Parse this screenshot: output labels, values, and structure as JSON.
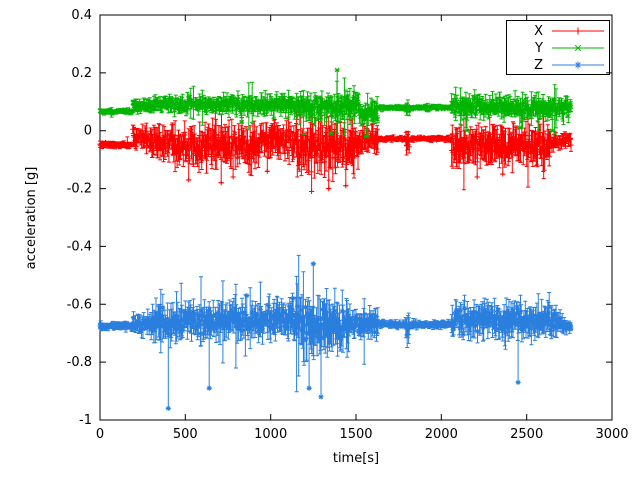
{
  "figure": {
    "background": "#ffffff",
    "border_color": "#000000",
    "text_color": "#000000"
  },
  "chart_data": {
    "type": "line",
    "title": "",
    "xlabel": "time[s]",
    "ylabel": "acceleration [g]",
    "xlim": [
      0,
      3000
    ],
    "ylim": [
      -1,
      0.4
    ],
    "x_ticks": [
      0,
      500,
      1000,
      1500,
      2000,
      2500,
      3000
    ],
    "y_ticks": [
      -1,
      -0.8,
      -0.6,
      -0.4,
      -0.2,
      0,
      0.2,
      0.4
    ],
    "grid": false,
    "legend": {
      "position": "top-right",
      "box": true,
      "entries": [
        "X",
        "Y",
        "Z"
      ]
    },
    "t_start": 0,
    "t_end": 2760,
    "sample_step": 4,
    "style": "errorbars-with-points",
    "series": [
      {
        "name": "X",
        "color": "#ff0000",
        "marker": "plus",
        "baseline": -0.04,
        "segments": [
          {
            "t0": 0,
            "t1": 190,
            "mean": -0.048,
            "spread": 0.01
          },
          {
            "t0": 190,
            "t1": 290,
            "mean": -0.025,
            "spread": 0.035
          },
          {
            "t0": 290,
            "t1": 450,
            "mean": -0.04,
            "spread": 0.05
          },
          {
            "t0": 450,
            "t1": 950,
            "mean": -0.05,
            "spread": 0.06
          },
          {
            "t0": 950,
            "t1": 1150,
            "mean": -0.035,
            "spread": 0.05
          },
          {
            "t0": 1150,
            "t1": 1520,
            "mean": -0.06,
            "spread": 0.075
          },
          {
            "t0": 1520,
            "t1": 1630,
            "mean": -0.03,
            "spread": 0.04
          },
          {
            "t0": 1630,
            "t1": 1790,
            "mean": -0.028,
            "spread": 0.008
          },
          {
            "t0": 1790,
            "t1": 1815,
            "mean": -0.04,
            "spread": 0.03
          },
          {
            "t0": 1815,
            "t1": 2060,
            "mean": -0.028,
            "spread": 0.008
          },
          {
            "t0": 2060,
            "t1": 2420,
            "mean": -0.05,
            "spread": 0.06
          },
          {
            "t0": 2420,
            "t1": 2640,
            "mean": -0.05,
            "spread": 0.055
          },
          {
            "t0": 2640,
            "t1": 2760,
            "mean": -0.035,
            "spread": 0.025
          }
        ],
        "outliers": [
          {
            "t": 1300,
            "v": 0.11
          },
          {
            "t": 520,
            "v": -0.17
          },
          {
            "t": 710,
            "v": -0.18
          },
          {
            "t": 780,
            "v": -0.16
          },
          {
            "t": 1240,
            "v": -0.21
          },
          {
            "t": 1340,
            "v": -0.2
          },
          {
            "t": 1440,
            "v": -0.19
          },
          {
            "t": 2210,
            "v": -0.16
          },
          {
            "t": 2360,
            "v": -0.15
          },
          {
            "t": 980,
            "v": -0.14
          }
        ]
      },
      {
        "name": "Y",
        "color": "#00b400",
        "marker": "cross",
        "baseline": 0.08,
        "segments": [
          {
            "t0": 0,
            "t1": 190,
            "mean": 0.067,
            "spread": 0.008
          },
          {
            "t0": 190,
            "t1": 290,
            "mean": 0.085,
            "spread": 0.02
          },
          {
            "t0": 290,
            "t1": 700,
            "mean": 0.09,
            "spread": 0.025
          },
          {
            "t0": 700,
            "t1": 1150,
            "mean": 0.088,
            "spread": 0.03
          },
          {
            "t0": 1150,
            "t1": 1520,
            "mean": 0.08,
            "spread": 0.04
          },
          {
            "t0": 1520,
            "t1": 1630,
            "mean": 0.06,
            "spread": 0.035
          },
          {
            "t0": 1630,
            "t1": 1790,
            "mean": 0.079,
            "spread": 0.008
          },
          {
            "t0": 1790,
            "t1": 1815,
            "mean": 0.075,
            "spread": 0.02
          },
          {
            "t0": 1815,
            "t1": 2060,
            "mean": 0.079,
            "spread": 0.008
          },
          {
            "t0": 2060,
            "t1": 2420,
            "mean": 0.085,
            "spread": 0.032
          },
          {
            "t0": 2420,
            "t1": 2760,
            "mean": 0.08,
            "spread": 0.035
          }
        ],
        "outliers": [
          {
            "t": 1390,
            "v": 0.21
          },
          {
            "t": 1355,
            "v": -0.01
          },
          {
            "t": 1560,
            "v": -0.02
          },
          {
            "t": 2150,
            "v": 0.0
          },
          {
            "t": 2460,
            "v": 0.01
          },
          {
            "t": 2650,
            "v": 0.0
          },
          {
            "t": 830,
            "v": 0.03
          }
        ]
      },
      {
        "name": "Z",
        "color": "#2a7fde",
        "marker": "asterisk",
        "baseline": -0.67,
        "segments": [
          {
            "t0": 0,
            "t1": 190,
            "mean": -0.675,
            "spread": 0.012
          },
          {
            "t0": 190,
            "t1": 300,
            "mean": -0.668,
            "spread": 0.03
          },
          {
            "t0": 300,
            "t1": 950,
            "mean": -0.66,
            "spread": 0.055
          },
          {
            "t0": 950,
            "t1": 1150,
            "mean": -0.65,
            "spread": 0.06
          },
          {
            "t0": 1150,
            "t1": 1460,
            "mean": -0.67,
            "spread": 0.085
          },
          {
            "t0": 1460,
            "t1": 1630,
            "mean": -0.665,
            "spread": 0.045
          },
          {
            "t0": 1630,
            "t1": 1790,
            "mean": -0.67,
            "spread": 0.012
          },
          {
            "t0": 1790,
            "t1": 1815,
            "mean": -0.68,
            "spread": 0.05
          },
          {
            "t0": 1815,
            "t1": 2060,
            "mean": -0.67,
            "spread": 0.012
          },
          {
            "t0": 2060,
            "t1": 2320,
            "mean": -0.655,
            "spread": 0.055
          },
          {
            "t0": 2320,
            "t1": 2540,
            "mean": -0.66,
            "spread": 0.055
          },
          {
            "t0": 2540,
            "t1": 2700,
            "mean": -0.655,
            "spread": 0.05
          },
          {
            "t0": 2700,
            "t1": 2760,
            "mean": -0.67,
            "spread": 0.02
          }
        ],
        "outliers": [
          {
            "t": 400,
            "v": -0.96
          },
          {
            "t": 1250,
            "v": -0.46
          },
          {
            "t": 1295,
            "v": -0.92
          },
          {
            "t": 1225,
            "v": -0.89
          },
          {
            "t": 2450,
            "v": -0.87
          },
          {
            "t": 640,
            "v": -0.89
          },
          {
            "t": 860,
            "v": -0.57
          },
          {
            "t": 1130,
            "v": -0.58
          }
        ]
      }
    ]
  }
}
